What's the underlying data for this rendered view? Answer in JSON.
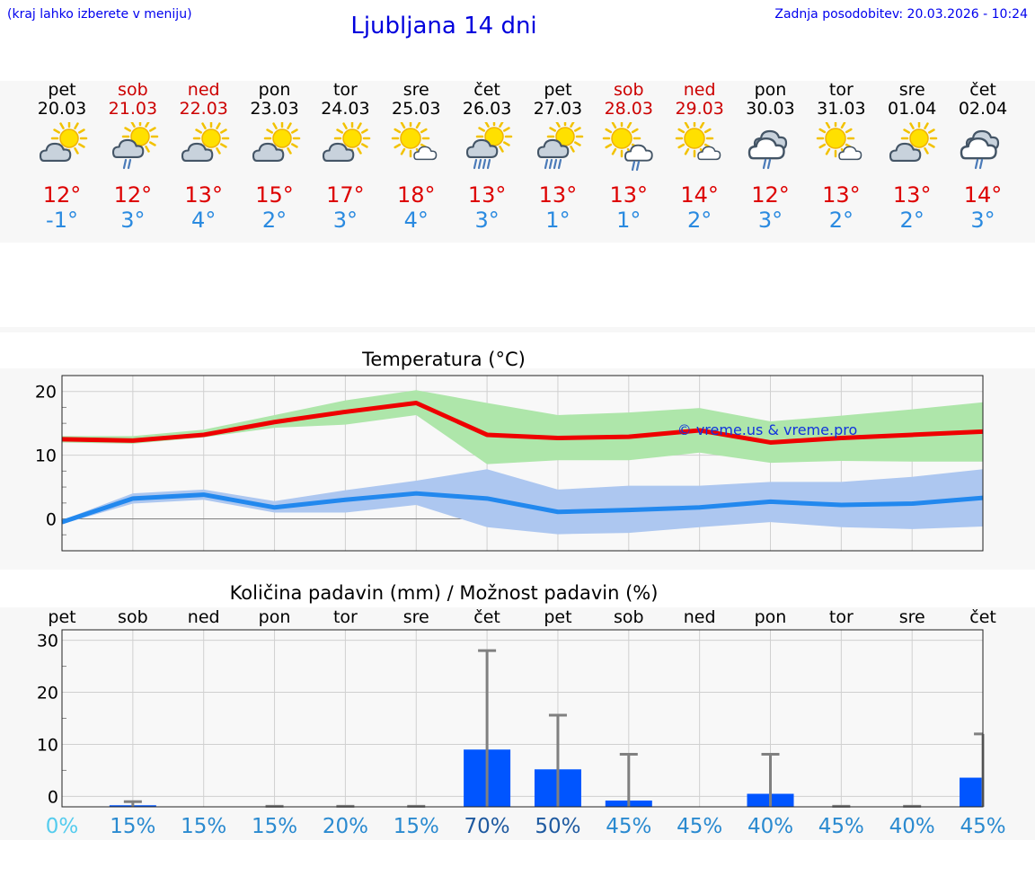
{
  "header": {
    "hint": "(kraj lahko izberete v meniju)",
    "title": "Ljubljana 14 dni",
    "update": "Zadnja posodobitev: 20.03.2026 - 10:24"
  },
  "days": [
    {
      "dow": "pet",
      "date": "20.03",
      "tmax": "12°",
      "tmin": "-1°",
      "icon": "cloud-sun-icon",
      "weekend": false
    },
    {
      "dow": "sob",
      "date": "21.03",
      "tmax": "12°",
      "tmin": "3°",
      "icon": "cloud-sun-rain-icon",
      "weekend": true
    },
    {
      "dow": "ned",
      "date": "22.03",
      "tmax": "13°",
      "tmin": "4°",
      "icon": "cloud-sun-icon",
      "weekend": true
    },
    {
      "dow": "pon",
      "date": "23.03",
      "tmax": "15°",
      "tmin": "2°",
      "icon": "cloud-sun-icon",
      "weekend": false
    },
    {
      "dow": "tor",
      "date": "24.03",
      "tmax": "17°",
      "tmin": "3°",
      "icon": "cloud-sun-icon",
      "weekend": false
    },
    {
      "dow": "sre",
      "date": "25.03",
      "tmax": "18°",
      "tmin": "4°",
      "icon": "sun-cloud-icon",
      "weekend": false
    },
    {
      "dow": "čet",
      "date": "26.03",
      "tmax": "13°",
      "tmin": "3°",
      "icon": "cloud-sun-heavy-rain-icon",
      "weekend": false
    },
    {
      "dow": "pet",
      "date": "27.03",
      "tmax": "13°",
      "tmin": "1°",
      "icon": "cloud-sun-heavy-rain-icon",
      "weekend": false
    },
    {
      "dow": "sob",
      "date": "28.03",
      "tmax": "13°",
      "tmin": "1°",
      "icon": "sun-cloud-rain-icon",
      "weekend": true
    },
    {
      "dow": "ned",
      "date": "29.03",
      "tmax": "14°",
      "tmin": "2°",
      "icon": "sun-cloud-icon",
      "weekend": true
    },
    {
      "dow": "pon",
      "date": "30.03",
      "tmax": "12°",
      "tmin": "3°",
      "icon": "cloud-rain-icon",
      "weekend": false
    },
    {
      "dow": "tor",
      "date": "31.03",
      "tmax": "13°",
      "tmin": "2°",
      "icon": "sun-cloud-icon",
      "weekend": false
    },
    {
      "dow": "sre",
      "date": "01.04",
      "tmax": "13°",
      "tmin": "2°",
      "icon": "cloud-sun-icon",
      "weekend": false
    },
    {
      "dow": "čet",
      "date": "02.04",
      "tmax": "14°",
      "tmin": "3°",
      "icon": "cloud-rain-icon",
      "weekend": false
    }
  ],
  "colors": {
    "max_line": "#ee0000",
    "max_band": "#aee6aa",
    "min_line": "#2288ee",
    "min_band": "#adc7f0",
    "bar": "#0055ff",
    "whisker": "#808080",
    "prob_low": "#55ccee",
    "prob_mid": "#2a8ad0",
    "prob_high": "#1f5aa0"
  },
  "chart_data": [
    {
      "type": "line",
      "title": "Temperatura (°C)",
      "ylim": [
        -5,
        22.5
      ],
      "yticks": [
        0,
        10,
        20
      ],
      "x": [
        "pet",
        "sob",
        "ned",
        "pon",
        "tor",
        "sre",
        "čet",
        "pet",
        "sob",
        "ned",
        "pon",
        "tor",
        "sre",
        "čet"
      ],
      "grid": true,
      "watermark": "© vreme.us & vreme.pro",
      "series": [
        {
          "name": "max",
          "values": [
            12.5,
            12.3,
            13.2,
            15.2,
            16.8,
            18.2,
            13.2,
            12.7,
            12.9,
            13.9,
            12.0,
            12.7,
            13.2,
            13.7
          ],
          "band_low": [
            12.0,
            11.8,
            12.8,
            14.3,
            14.8,
            16.3,
            8.6,
            9.2,
            9.2,
            10.4,
            8.8,
            9.1,
            9.0,
            9.0
          ],
          "band_high": [
            13.0,
            13.0,
            14.0,
            16.3,
            18.6,
            20.2,
            18.2,
            16.3,
            16.7,
            17.4,
            15.3,
            16.2,
            17.2,
            18.3
          ]
        },
        {
          "name": "min",
          "values": [
            -0.5,
            3.2,
            3.8,
            1.8,
            3.0,
            4.0,
            3.2,
            1.1,
            1.4,
            1.8,
            2.7,
            2.2,
            2.4,
            3.3
          ],
          "band_low": [
            -0.8,
            2.4,
            3.0,
            1.0,
            1.0,
            2.2,
            -1.3,
            -2.4,
            -2.2,
            -1.3,
            -0.5,
            -1.3,
            -1.6,
            -1.2
          ],
          "band_high": [
            -0.2,
            4.0,
            4.6,
            2.8,
            4.5,
            6.0,
            7.8,
            4.6,
            5.2,
            5.2,
            5.8,
            5.8,
            6.6,
            7.8
          ]
        }
      ]
    },
    {
      "type": "bar",
      "title": "Količina padavin (mm) / Možnost padavin (%)",
      "categories": [
        "pet",
        "sob",
        "ned",
        "pon",
        "tor",
        "sre",
        "čet",
        "pet",
        "sob",
        "ned",
        "pon",
        "tor",
        "sre",
        "čet"
      ],
      "ylim": [
        -2,
        32
      ],
      "yticks": [
        0,
        10,
        20,
        30
      ],
      "values": [
        0,
        0.3,
        0,
        0,
        0,
        0,
        11,
        7.2,
        1.2,
        0,
        2.5,
        0,
        0,
        5.6
      ],
      "error_high": [
        0,
        1,
        0,
        0.1,
        0.1,
        0.1,
        30,
        17.6,
        10.1,
        0,
        10.1,
        0.1,
        0.1,
        14
      ],
      "probability": [
        "0%",
        "15%",
        "15%",
        "15%",
        "20%",
        "15%",
        "70%",
        "50%",
        "45%",
        "45%",
        "40%",
        "45%",
        "40%",
        "45%"
      ]
    }
  ]
}
